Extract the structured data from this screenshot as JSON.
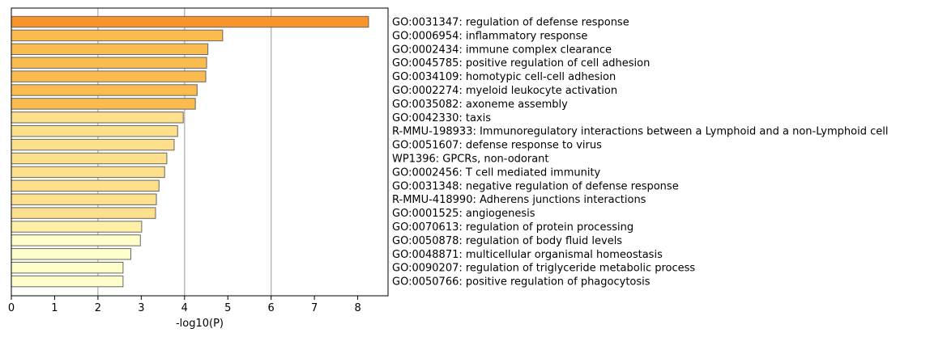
{
  "chart_data": {
    "type": "bar",
    "orientation": "horizontal",
    "title": "",
    "xlabel": "-log10(P)",
    "ylabel": "",
    "xlim": [
      0,
      8.7
    ],
    "xticks": [
      "0",
      "1",
      "2",
      "3",
      "4",
      "5",
      "6",
      "7",
      "8"
    ],
    "grid": "vertical lines at x = 2, 4, 6",
    "categories": [
      "GO:0031347: regulation of defense response",
      "GO:0006954: inflammatory response",
      "GO:0002434: immune complex clearance",
      "GO:0045785: positive regulation of cell adhesion",
      "GO:0034109: homotypic cell-cell adhesion",
      "GO:0002274: myeloid leukocyte activation",
      "GO:0035082: axoneme assembly",
      "GO:0042330: taxis",
      "R-MMU-198933: Immunoregulatory interactions between a Lymphoid and a non-Lymphoid cell",
      "GO:0051607: defense response to virus",
      "WP1396: GPCRs, non-odorant",
      "GO:0002456: T cell mediated immunity",
      "GO:0031348: negative regulation of defense response",
      "R-MMU-418990: Adherens junctions interactions",
      "GO:0001525: angiogenesis",
      "GO:0070613: regulation of protein processing",
      "GO:0050878: regulation of body fluid levels",
      "GO:0048871: multicellular organismal homeostasis",
      "GO:0090207: regulation of triglyceride metabolic process",
      "GO:0050766: positive regulation of phagocytosis"
    ],
    "values": [
      8.25,
      4.88,
      4.54,
      4.51,
      4.49,
      4.29,
      4.25,
      3.97,
      3.84,
      3.76,
      3.59,
      3.54,
      3.41,
      3.35,
      3.33,
      3.01,
      2.98,
      2.76,
      2.58,
      2.58
    ],
    "bar_colors": [
      "#f7942b",
      "#fcbb4f",
      "#fcbb4f",
      "#fcbb4f",
      "#fcbb4f",
      "#fcbb4f",
      "#fcbb4f",
      "#fedf8b",
      "#fedf8b",
      "#fedf8b",
      "#fedf8b",
      "#fedf8b",
      "#fedf8b",
      "#fedf8b",
      "#fedf8b",
      "#ffefa7",
      "#ffffcc",
      "#ffffcc",
      "#ffffcc",
      "#ffffcc"
    ],
    "bar_edge_color": "#666666",
    "grid_color": "#b0b0b0"
  }
}
